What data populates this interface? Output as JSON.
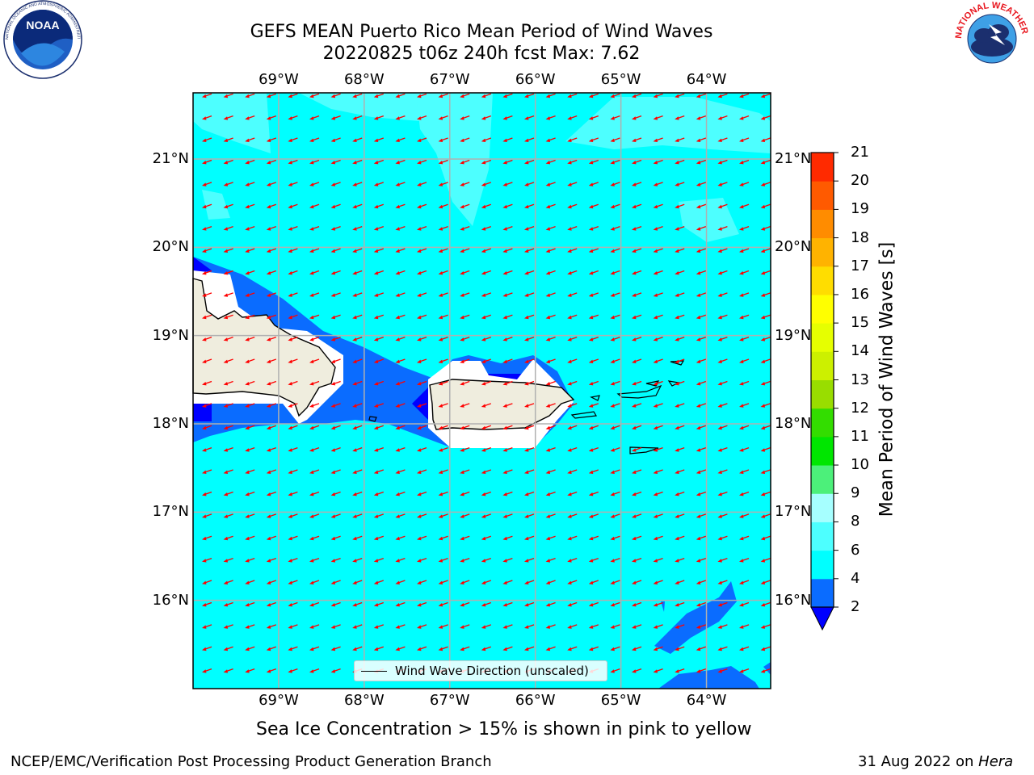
{
  "header": {
    "title_line1": "GEFS MEAN Puerto Rico Mean Period of Wind Waves",
    "title_line2": "20220825 t06z 240h fcst   Max: 7.62"
  },
  "logos": {
    "left": "noaa-logo",
    "left_text": "NOAA",
    "left_ring_text": "NATIONAL OCEANIC AND ATMOSPHERIC ADMINISTRATION • U.S. DEPARTMENT OF COMMERCE",
    "right": "nws-logo",
    "right_ring_text": "NATIONAL WEATHER SERVICE"
  },
  "map": {
    "lon_ticks": [
      "69°W",
      "68°W",
      "67°W",
      "66°W",
      "65°W",
      "64°W"
    ],
    "lat_ticks": [
      "21°N",
      "20°N",
      "19°N",
      "18°N",
      "17°N",
      "16°N"
    ],
    "lon_values": [
      -69,
      -68,
      -67,
      -66,
      -65,
      -64
    ],
    "lat_values": [
      21,
      20,
      19,
      18,
      17,
      16
    ],
    "extent": {
      "lon_min": -70,
      "lon_max": -63.25,
      "lat_min": 15,
      "lat_max": 21.75
    },
    "grid": true,
    "legend_label": "Wind Wave Direction (unscaled)",
    "legend_placement": "bottom-center",
    "arrow_color": "#ff0000",
    "land_color": "#efedde",
    "dominant_field_color": "#00ffff",
    "wind_direction": "from east-northeast"
  },
  "colorbar": {
    "label": "Mean Period of Wind Waves [s]",
    "tick_labels": [
      "2",
      "4",
      "6",
      "8",
      "9",
      "10",
      "11",
      "12",
      "13",
      "14",
      "15",
      "16",
      "17",
      "18",
      "19",
      "20",
      "21"
    ],
    "levels": [
      2,
      4,
      6,
      8,
      9,
      10,
      11,
      12,
      13,
      14,
      15,
      16,
      17,
      18,
      19,
      20,
      21
    ],
    "colors": [
      "#0a6cff",
      "#00ffff",
      "#4dffff",
      "#a6ffff",
      "#4cf07a",
      "#00e600",
      "#33dd00",
      "#99dd00",
      "#ccf000",
      "#e6ff00",
      "#ffff00",
      "#ffdd00",
      "#ffb300",
      "#ff8c00",
      "#ff5a00",
      "#ff2a00",
      "#ff0000"
    ],
    "under_color": "#0000ff",
    "extend": "min"
  },
  "caption": "Sea Ice Concentration > 15% is shown in pink to yellow",
  "footer": {
    "left": "NCEP/EMC/Verification Post Processing Product Generation Branch",
    "right_prefix": "31 Aug 2022 on ",
    "right_machine": "Hera"
  }
}
